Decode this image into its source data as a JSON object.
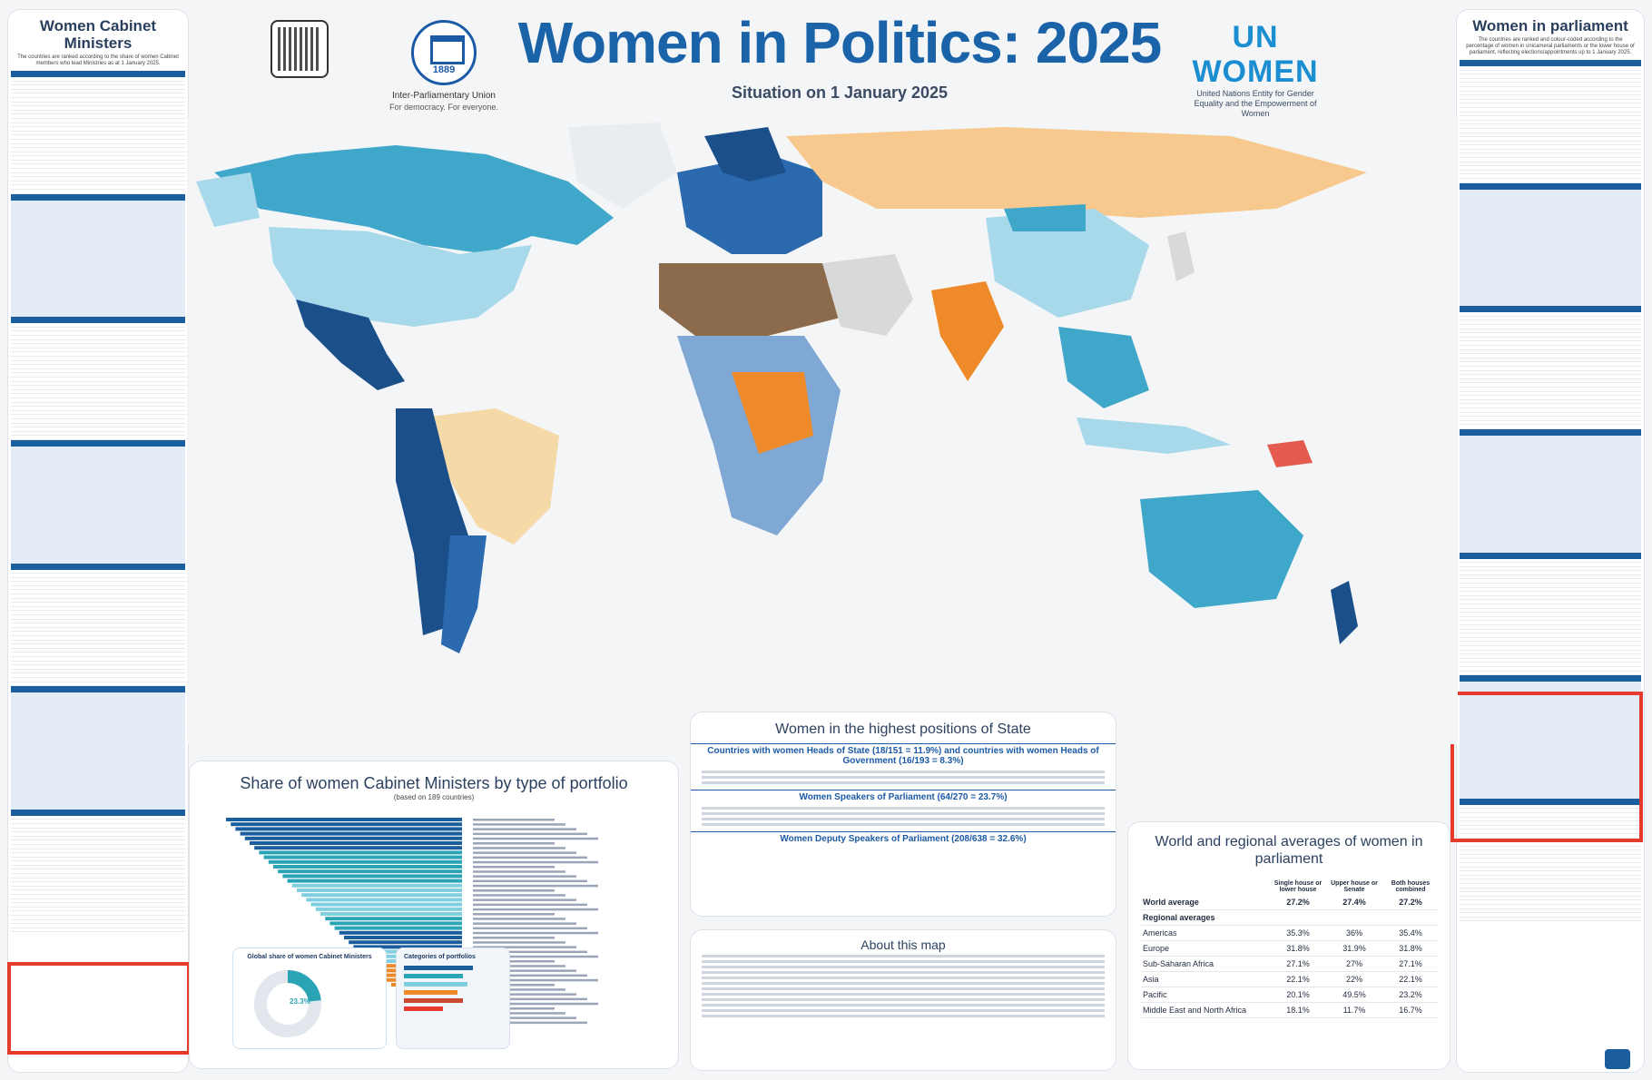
{
  "header": {
    "title": "Women in Politics: 2025",
    "subtitle": "Situation on 1 January 2025",
    "ipu_year": "1889",
    "ipu_name": "Inter-Parliamentary Union",
    "ipu_tagline": "For democracy. For everyone.",
    "unwomen_logo": "UN WOMEN",
    "unwomen_desc": "United Nations Entity for Gender Equality and the Empowerment of Women"
  },
  "left_panel": {
    "title": "Women Cabinet Ministers",
    "subtitle": "The countries are ranked according to the share of women Cabinet members who lead Ministries as at 1 January 2025."
  },
  "right_panel": {
    "title": "Women in parliament",
    "subtitle": "The countries are ranked and colour-coded according to the percentage of women in unicameral parliaments or the lower house of parliament, reflecting elections/appointments up to 1 January 2025."
  },
  "portfolio": {
    "title": "Share of women Cabinet Ministers by type of portfolio",
    "subtitle": "(based on 189 countries)",
    "donut_title": "Global share of women Cabinet Ministers",
    "donut_value": "23.3%",
    "categories_title": "Categories of portfolios"
  },
  "highest": {
    "title": "Women in the highest positions of State",
    "heads": "Countries with women Heads of State (18/151 = 11.9%) and countries with women Heads of Government (16/193 = 8.3%)",
    "speakers": "Women Speakers of Parliament (64/270 = 23.7%)",
    "deputies": "Women Deputy Speakers of Parliament (208/638 = 32.6%)"
  },
  "about": {
    "title": "About this map"
  },
  "world": {
    "title": "World and regional averages of women in parliament",
    "col1": "Single house or lower house",
    "col2": "Upper house or Senate",
    "col3": "Both houses combined",
    "rows": [
      {
        "region": "World average",
        "v1": "27.2%",
        "v2": "27.4%",
        "v3": "27.2%"
      },
      {
        "region": "Americas",
        "v1": "35.3%",
        "v2": "36%",
        "v3": "35.4%"
      },
      {
        "region": "Europe",
        "v1": "31.8%",
        "v2": "31.9%",
        "v3": "31.8%"
      },
      {
        "region": "Sub-Saharan Africa",
        "v1": "27.1%",
        "v2": "27%",
        "v3": "27.1%"
      },
      {
        "region": "Asia",
        "v1": "22.1%",
        "v2": "22%",
        "v3": "22.1%"
      },
      {
        "region": "Pacific",
        "v1": "20.1%",
        "v2": "49.5%",
        "v3": "23.2%"
      },
      {
        "region": "Middle East and North Africa",
        "v1": "18.1%",
        "v2": "11.7%",
        "v3": "16.7%"
      }
    ],
    "regional_label": "Regional averages"
  },
  "colors": {
    "accent": "#1a63a8",
    "highlight": "#e53a2e"
  }
}
